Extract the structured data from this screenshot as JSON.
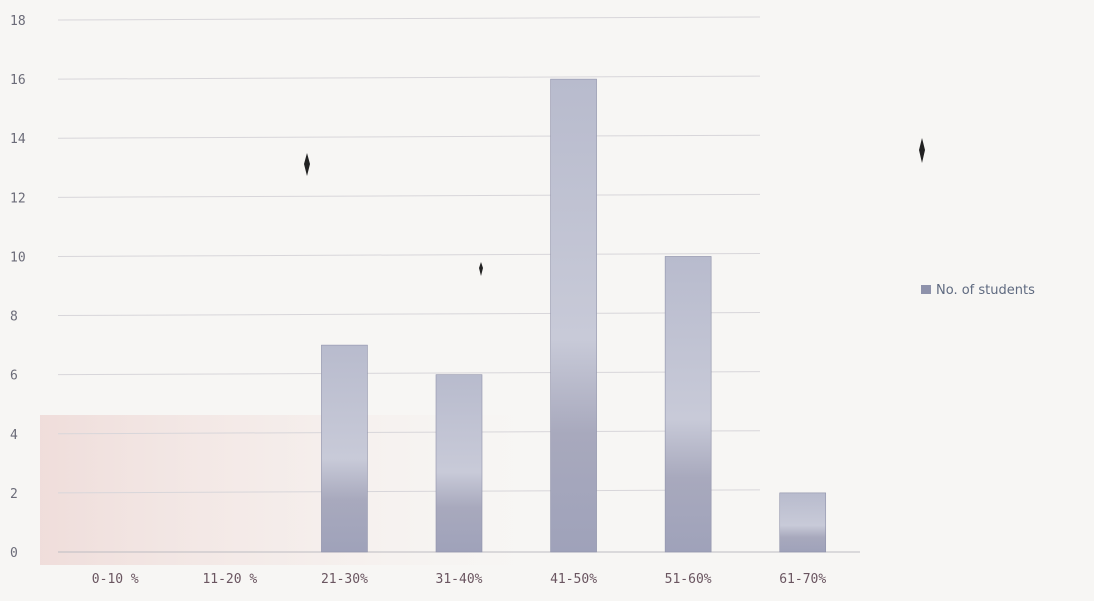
{
  "chart_data": {
    "type": "bar",
    "categories": [
      "0-10 %",
      "11-20 %",
      "21-30%",
      "31-40%",
      "41-50%",
      "51-60%",
      "61-70%"
    ],
    "series": [
      {
        "name": "No. of students",
        "values": [
          0,
          0,
          7,
          6,
          16,
          10,
          2
        ]
      }
    ],
    "yticks": [
      "0",
      "2",
      "4",
      "6",
      "8",
      "10",
      "12",
      "14",
      "16",
      "18"
    ],
    "ylim": [
      0,
      18
    ],
    "legend": "right",
    "grid": true,
    "colors": {
      "bar_top": "#b9bccf",
      "bar_mid": "#9c9fb8",
      "bar_shadow": "#8a7680",
      "legend_swatch": "#8e92ab",
      "background": "#f7f6f4"
    }
  }
}
